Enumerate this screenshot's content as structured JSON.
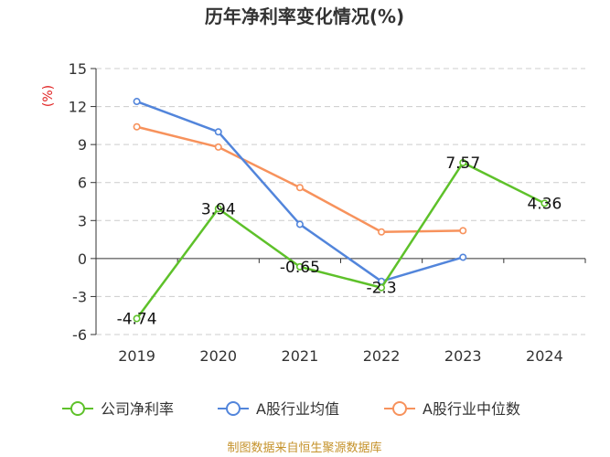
{
  "chart_data": {
    "type": "line",
    "title": "历年净利率变化情况(%)",
    "ylabel": "(%)",
    "categories": [
      "2019",
      "2020",
      "2021",
      "2022",
      "2023",
      "2024"
    ],
    "yticks": [
      15,
      12,
      9,
      6,
      3,
      0,
      -3,
      -6
    ],
    "ylim": [
      -6,
      15
    ],
    "grid": true,
    "legend_position": "bottom",
    "series": [
      {
        "name": "公司净利率",
        "color": "#5ec12a",
        "values": [
          -4.74,
          3.94,
          -0.65,
          -2.3,
          7.57,
          4.36
        ],
        "labels": [
          "-4.74",
          "3.94",
          "-0.65",
          "-2.3",
          "7.57",
          "4.36"
        ]
      },
      {
        "name": "A股行业均值",
        "color": "#5285db",
        "values": [
          12.4,
          10.0,
          2.7,
          -1.8,
          0.1,
          null
        ]
      },
      {
        "name": "A股行业中位数",
        "color": "#f7925c",
        "values": [
          10.4,
          8.8,
          5.6,
          2.1,
          2.2,
          null
        ]
      }
    ]
  },
  "footer": {
    "source": "制图数据来自恒生聚源数据库",
    "source_color": "#c5922a"
  },
  "colors": {
    "unit_label": "#e02020",
    "axis": "#333333",
    "grid": "#cccccc"
  }
}
